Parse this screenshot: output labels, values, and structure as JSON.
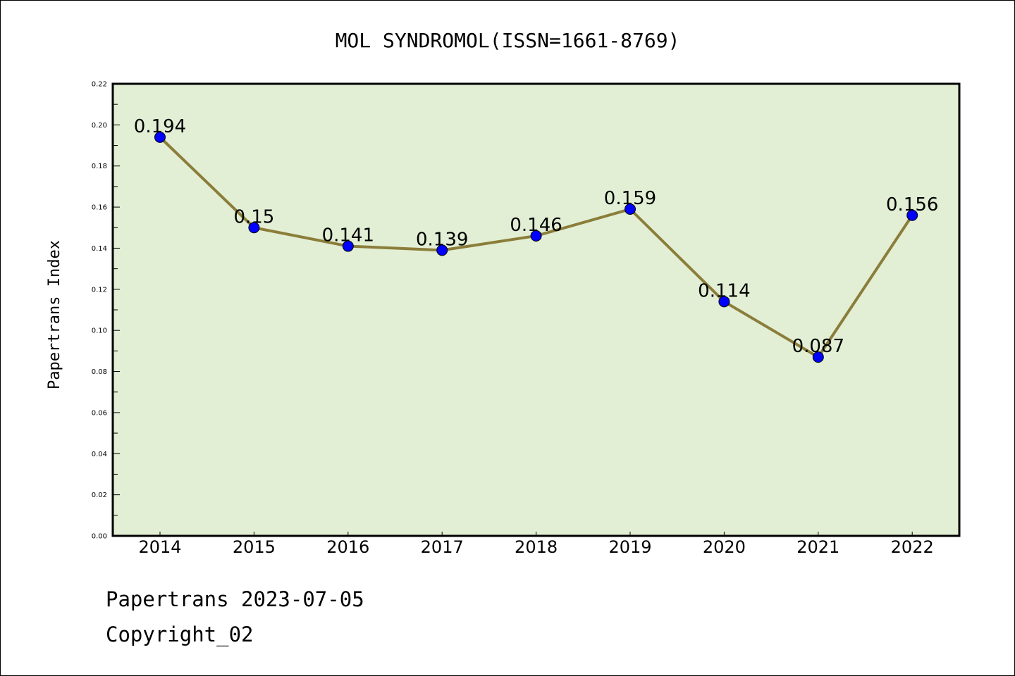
{
  "chart_data": {
    "type": "line",
    "title": "MOL SYNDROMOL(ISSN=1661-8769)",
    "xlabel": "",
    "ylabel": "Papertrans Index",
    "categories": [
      "2014",
      "2015",
      "2016",
      "2017",
      "2018",
      "2019",
      "2020",
      "2021",
      "2022"
    ],
    "series": [
      {
        "name": "Papertrans Index",
        "values": [
          0.194,
          0.15,
          0.141,
          0.139,
          0.146,
          0.159,
          0.114,
          0.087,
          0.156
        ],
        "labels": [
          "0.194",
          "0.15",
          "0.141",
          "0.139",
          "0.146",
          "0.159",
          "0.114",
          "0.087",
          "0.156"
        ],
        "line_color": "#8b7d3a",
        "marker_color": "#0000ff"
      }
    ],
    "ylim": [
      0,
      0.22
    ],
    "yticks": [
      "0.00",
      "0.02",
      "0.04",
      "0.06",
      "0.08",
      "0.10",
      "0.12",
      "0.14",
      "0.16",
      "0.18",
      "0.20",
      "0.22"
    ],
    "grid": false,
    "legend": "none",
    "plot_background": "#e2efd5"
  },
  "footer": {
    "source_line": "Papertrans 2023-07-05",
    "copyright": "Copyright_02"
  }
}
